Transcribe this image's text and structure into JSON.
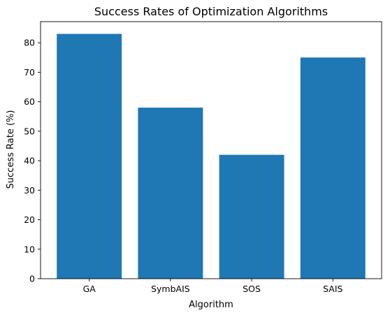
{
  "chart_data": {
    "type": "bar",
    "title": "Success Rates of Optimization Algorithms",
    "xlabel": "Algorithm",
    "ylabel": "Success Rate (%)",
    "categories": [
      "GA",
      "SymbAIS",
      "SOS",
      "SAIS"
    ],
    "values": [
      83,
      58,
      42,
      75
    ],
    "ylim": [
      0,
      87.15
    ],
    "yticks": [
      0,
      10,
      20,
      30,
      40,
      50,
      60,
      70,
      80
    ],
    "grid": false,
    "bar_color": "#1f77b4"
  }
}
